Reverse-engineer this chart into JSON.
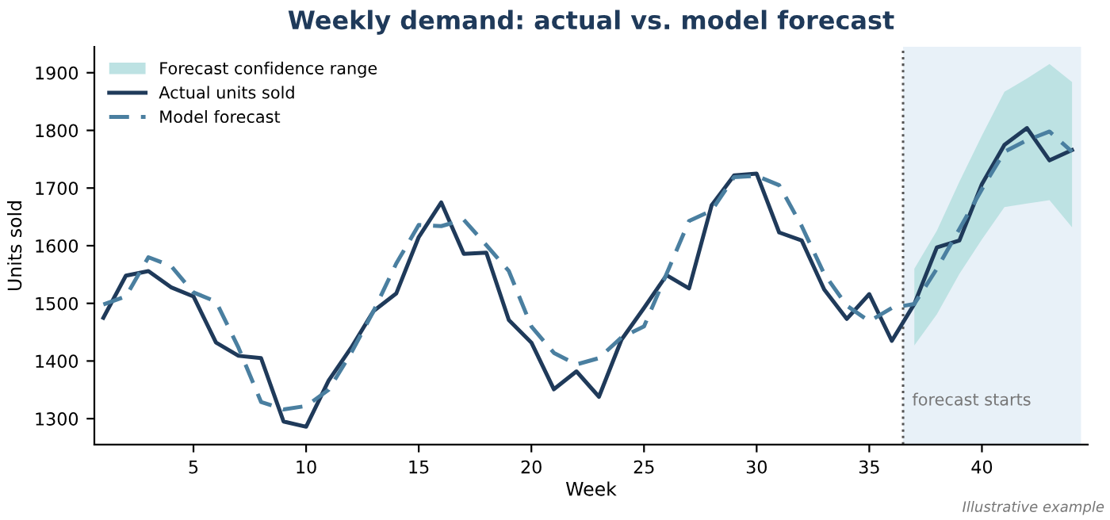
{
  "chart_data": {
    "type": "line",
    "title": "Weekly demand: actual vs. model forecast",
    "xlabel": "Week",
    "ylabel": "Units sold",
    "x": [
      1,
      2,
      3,
      4,
      5,
      6,
      7,
      8,
      9,
      10,
      11,
      12,
      13,
      14,
      15,
      16,
      17,
      18,
      19,
      20,
      21,
      22,
      23,
      24,
      25,
      26,
      27,
      28,
      29,
      30,
      31,
      32,
      33,
      34,
      35,
      36,
      37,
      38,
      39,
      40,
      41,
      42,
      43,
      44
    ],
    "series": [
      {
        "type": "line",
        "name": "Forecast confidence range",
        "color": "#bde2e3",
        "x": [
          37,
          38,
          39,
          40,
          41,
          42,
          43,
          44
        ],
        "values": [
          null,
          null,
          null,
          null,
          null,
          null,
          null,
          null
        ],
        "lower": [
          1427,
          1481,
          1551,
          1611,
          1667,
          1673,
          1679,
          1632
        ],
        "upper": [
          1560,
          1626,
          1711,
          1791,
          1867,
          1890,
          1915,
          1884
        ]
      },
      {
        "name": "Actual units sold",
        "color": "#1f3a5a",
        "line_style": "solid",
        "values": [
          1475,
          1548,
          1556,
          1528,
          1512,
          1432,
          1409,
          1405,
          1295,
          1286,
          1366,
          1423,
          1487,
          1517,
          1615,
          1675,
          1586,
          1588,
          1471,
          1432,
          1351,
          1382,
          1338,
          1437,
          1492,
          1549,
          1526,
          1670,
          1722,
          1725,
          1623,
          1609,
          1524,
          1473,
          1516,
          1435,
          1499,
          1597,
          1609,
          1707,
          1775,
          1804,
          1748,
          1766
        ]
      },
      {
        "name": "Model forecast",
        "color": "#4a7fa0",
        "line_style": "dashed",
        "values": [
          1498,
          1512,
          1580,
          1565,
          1519,
          1503,
          1423,
          1329,
          1316,
          1322,
          1350,
          1414,
          1487,
          1569,
          1636,
          1634,
          1645,
          1601,
          1556,
          1460,
          1414,
          1394,
          1405,
          1441,
          1460,
          1551,
          1643,
          1661,
          1719,
          1721,
          1705,
          1634,
          1551,
          1496,
          1469,
          1492,
          1499,
          1560,
          1629,
          1698,
          1763,
          1783,
          1798,
          1763
        ]
      }
    ],
    "xlim": [
      0.6,
      44.7
    ],
    "ylim": [
      1255,
      1945
    ],
    "xticks": [
      5,
      10,
      15,
      20,
      25,
      30,
      35,
      40
    ],
    "yticks": [
      1300,
      1400,
      1500,
      1600,
      1700,
      1800,
      1900
    ],
    "ref_lines": [
      {
        "axis": "x",
        "value": 36.5,
        "label": "forecast starts",
        "color": "#555555",
        "line_style": "dotted"
      }
    ],
    "bands": [
      {
        "axis": "x",
        "from": 36.5,
        "to": 44.4,
        "color": "#e8f1f8"
      }
    ],
    "annotations": [
      "Illustrative example"
    ],
    "grid": false,
    "legend": "top left",
    "marker": "none"
  }
}
